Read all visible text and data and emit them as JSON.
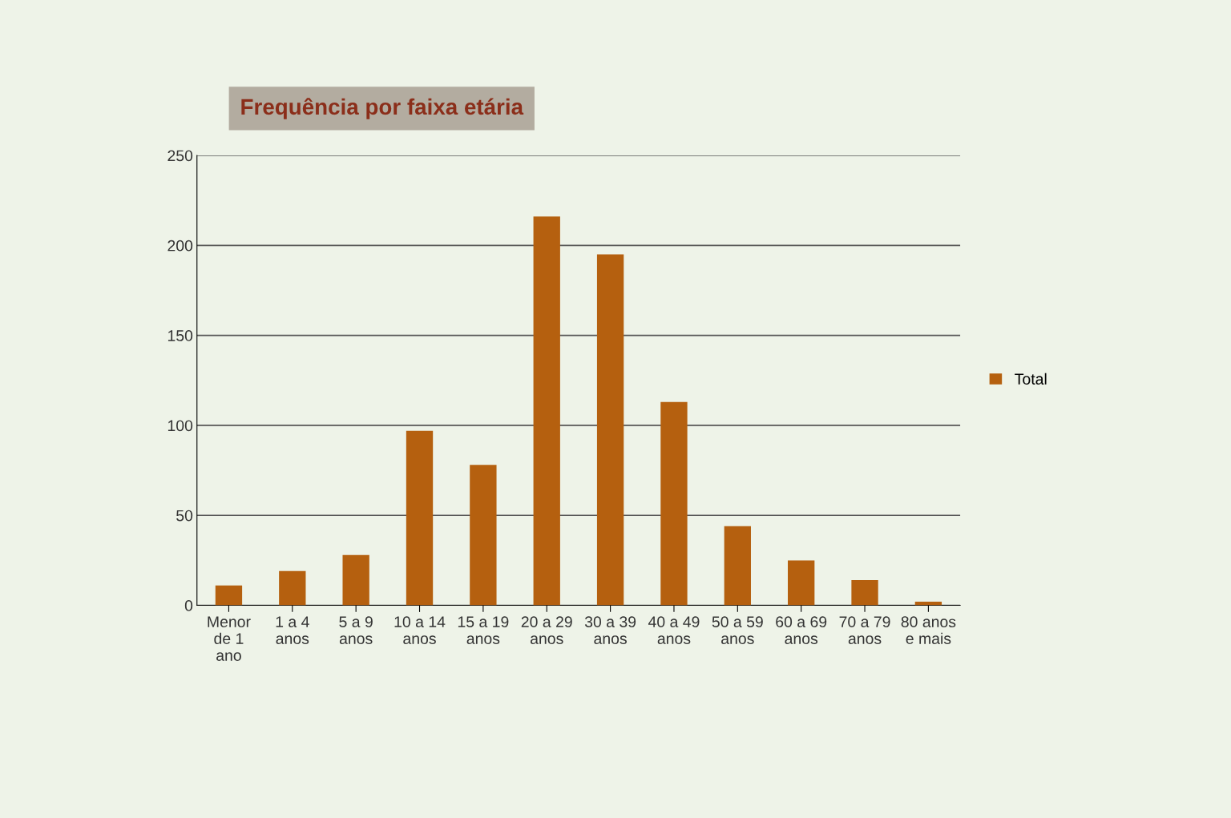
{
  "chart_data": {
    "type": "bar",
    "title": "Frequência por faixa etária",
    "categories": [
      "Menor\nde 1\nano",
      "1 a 4\nanos",
      "5 a 9\nanos",
      "10 a 14\nanos",
      "15 a 19\nanos",
      "20 a 29\nanos",
      "30 a 39\nanos",
      "40 a 49\nanos",
      "50 a 59\nanos",
      "60 a 69\nanos",
      "70 a 79\nanos",
      "80 anos\ne mais"
    ],
    "series": [
      {
        "name": "Total",
        "color": "#b5600f",
        "values": [
          11,
          19,
          28,
          97,
          78,
          216,
          195,
          113,
          44,
          25,
          14,
          2
        ]
      }
    ],
    "ylim": [
      0,
      250
    ],
    "yticks": [
      0,
      50,
      100,
      150,
      200,
      250
    ],
    "grid": "y",
    "legend": "right"
  }
}
